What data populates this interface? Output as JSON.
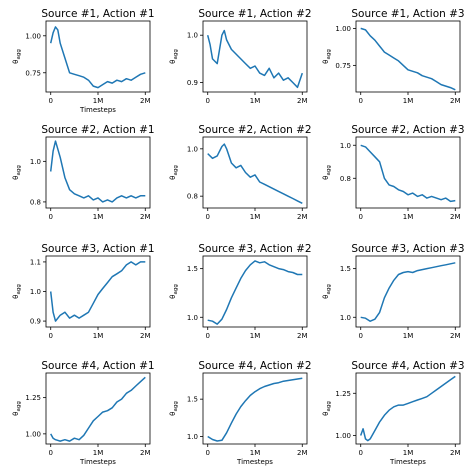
{
  "chart_data": [
    {
      "type": "line",
      "title": "Source #1, Action #1",
      "xlabel": "Timesteps",
      "ylabel": "θ_agg",
      "xlim": [
        -0.1,
        2.1
      ],
      "ylim": [
        0.62,
        1.1
      ],
      "x_ticks": [
        0,
        1,
        2
      ],
      "x_tick_labels": [
        "0",
        "1M",
        "2M"
      ],
      "y_ticks": [
        0.75,
        1.0
      ],
      "y_tick_labels": [
        "0.75",
        "1.00"
      ],
      "series": [
        {
          "x": [
            0,
            0.05,
            0.1,
            0.15,
            0.2,
            0.3,
            0.4,
            0.5,
            0.6,
            0.7,
            0.8,
            0.9,
            1.0,
            1.1,
            1.2,
            1.3,
            1.4,
            1.5,
            1.6,
            1.7,
            1.8,
            1.9,
            2.0
          ],
          "y": [
            0.95,
            1.02,
            1.06,
            1.04,
            0.95,
            0.85,
            0.75,
            0.74,
            0.73,
            0.72,
            0.7,
            0.66,
            0.65,
            0.67,
            0.69,
            0.68,
            0.7,
            0.69,
            0.71,
            0.7,
            0.72,
            0.74,
            0.75
          ]
        }
      ]
    },
    {
      "type": "line",
      "title": "Source #1, Action #2",
      "xlabel": "",
      "ylabel": "θ_agg",
      "xlim": [
        -0.1,
        2.1
      ],
      "ylim": [
        0.88,
        1.03
      ],
      "x_ticks": [
        0,
        1,
        2
      ],
      "x_tick_labels": [
        "0",
        "1M",
        "2M"
      ],
      "y_ticks": [
        0.9,
        1.0
      ],
      "y_tick_labels": [
        "0.9",
        "1.0"
      ],
      "series": [
        {
          "x": [
            0,
            0.05,
            0.1,
            0.2,
            0.3,
            0.35,
            0.4,
            0.5,
            0.6,
            0.7,
            0.8,
            0.9,
            1.0,
            1.1,
            1.2,
            1.3,
            1.4,
            1.5,
            1.6,
            1.7,
            1.8,
            1.9,
            2.0
          ],
          "y": [
            1.0,
            0.98,
            0.95,
            0.94,
            1.0,
            1.01,
            0.99,
            0.97,
            0.96,
            0.95,
            0.94,
            0.93,
            0.935,
            0.92,
            0.915,
            0.93,
            0.91,
            0.92,
            0.905,
            0.91,
            0.9,
            0.89,
            0.92
          ]
        }
      ]
    },
    {
      "type": "line",
      "title": "Source #1, Action #3",
      "xlabel": "",
      "ylabel": "θ_agg",
      "xlim": [
        -0.1,
        2.1
      ],
      "ylim": [
        0.57,
        1.05
      ],
      "x_ticks": [
        0,
        1,
        2
      ],
      "x_tick_labels": [
        "0",
        "1M",
        "2M"
      ],
      "y_ticks": [
        0.75,
        1.0
      ],
      "y_tick_labels": [
        "0.75",
        "1.00"
      ],
      "series": [
        {
          "x": [
            0,
            0.1,
            0.2,
            0.3,
            0.4,
            0.5,
            0.6,
            0.7,
            0.8,
            0.9,
            1.0,
            1.1,
            1.2,
            1.3,
            1.4,
            1.5,
            1.6,
            1.7,
            1.8,
            1.9,
            2.0
          ],
          "y": [
            1.0,
            0.99,
            0.95,
            0.92,
            0.88,
            0.84,
            0.82,
            0.8,
            0.78,
            0.75,
            0.72,
            0.71,
            0.7,
            0.68,
            0.67,
            0.66,
            0.64,
            0.62,
            0.61,
            0.6,
            0.585
          ]
        }
      ]
    },
    {
      "type": "line",
      "title": "Source #2, Action #1",
      "xlabel": "",
      "ylabel": "θ_agg",
      "xlim": [
        -0.1,
        2.1
      ],
      "ylim": [
        0.77,
        1.12
      ],
      "x_ticks": [
        0,
        1,
        2
      ],
      "x_tick_labels": [
        "0",
        "1M",
        "2M"
      ],
      "y_ticks": [
        0.8,
        1.0
      ],
      "y_tick_labels": [
        "0.8",
        "1.0"
      ],
      "series": [
        {
          "x": [
            0,
            0.05,
            0.1,
            0.2,
            0.3,
            0.4,
            0.5,
            0.6,
            0.7,
            0.8,
            0.9,
            1.0,
            1.1,
            1.2,
            1.3,
            1.4,
            1.5,
            1.6,
            1.7,
            1.8,
            1.9,
            2.0
          ],
          "y": [
            0.95,
            1.05,
            1.1,
            1.02,
            0.92,
            0.86,
            0.84,
            0.83,
            0.82,
            0.83,
            0.81,
            0.82,
            0.8,
            0.81,
            0.8,
            0.82,
            0.83,
            0.82,
            0.83,
            0.82,
            0.83,
            0.83
          ]
        }
      ]
    },
    {
      "type": "line",
      "title": "Source #2, Action #2",
      "xlabel": "",
      "ylabel": "θ_agg",
      "xlim": [
        -0.1,
        2.1
      ],
      "ylim": [
        0.75,
        1.05
      ],
      "x_ticks": [
        0,
        1,
        2
      ],
      "x_tick_labels": [
        "0",
        "1M",
        "2M"
      ],
      "y_ticks": [
        0.8,
        1.0
      ],
      "y_tick_labels": [
        "0.8",
        "1.0"
      ],
      "series": [
        {
          "x": [
            0,
            0.1,
            0.2,
            0.3,
            0.35,
            0.4,
            0.5,
            0.6,
            0.7,
            0.8,
            0.9,
            1.0,
            1.1,
            1.2,
            1.3,
            1.4,
            1.5,
            1.6,
            1.7,
            1.8,
            1.9,
            2.0
          ],
          "y": [
            0.98,
            0.96,
            0.97,
            1.01,
            1.02,
            1.0,
            0.94,
            0.92,
            0.93,
            0.9,
            0.88,
            0.89,
            0.86,
            0.85,
            0.84,
            0.83,
            0.82,
            0.81,
            0.8,
            0.79,
            0.78,
            0.77
          ]
        }
      ]
    },
    {
      "type": "line",
      "title": "Source #2, Action #3",
      "xlabel": "",
      "ylabel": "θ_agg",
      "xlim": [
        -0.1,
        2.1
      ],
      "ylim": [
        0.62,
        1.05
      ],
      "x_ticks": [
        0,
        1,
        2
      ],
      "x_tick_labels": [
        "0",
        "1M",
        "2M"
      ],
      "y_ticks": [
        0.8,
        1.0
      ],
      "y_tick_labels": [
        "0.8",
        "1.0"
      ],
      "series": [
        {
          "x": [
            0,
            0.1,
            0.2,
            0.3,
            0.4,
            0.5,
            0.6,
            0.7,
            0.8,
            0.9,
            1.0,
            1.1,
            1.2,
            1.3,
            1.4,
            1.5,
            1.6,
            1.7,
            1.8,
            1.9,
            2.0
          ],
          "y": [
            1.0,
            0.99,
            0.96,
            0.93,
            0.9,
            0.8,
            0.76,
            0.75,
            0.73,
            0.72,
            0.7,
            0.71,
            0.69,
            0.7,
            0.68,
            0.69,
            0.68,
            0.67,
            0.68,
            0.66,
            0.665
          ]
        }
      ]
    },
    {
      "type": "line",
      "title": "Source #3, Action #1",
      "xlabel": "",
      "ylabel": "θ_agg",
      "xlim": [
        -0.1,
        2.1
      ],
      "ylim": [
        0.88,
        1.12
      ],
      "x_ticks": [
        0,
        1,
        2
      ],
      "x_tick_labels": [
        "0",
        "1M",
        "2M"
      ],
      "y_ticks": [
        0.9,
        1.0,
        1.1
      ],
      "y_tick_labels": [
        "0.9",
        "1.0",
        "1.1"
      ],
      "series": [
        {
          "x": [
            0,
            0.05,
            0.1,
            0.2,
            0.3,
            0.4,
            0.5,
            0.6,
            0.7,
            0.8,
            0.9,
            1.0,
            1.1,
            1.2,
            1.3,
            1.4,
            1.5,
            1.6,
            1.7,
            1.8,
            1.9,
            2.0
          ],
          "y": [
            1.0,
            0.93,
            0.9,
            0.92,
            0.93,
            0.91,
            0.92,
            0.91,
            0.92,
            0.93,
            0.96,
            0.99,
            1.01,
            1.03,
            1.05,
            1.06,
            1.07,
            1.09,
            1.1,
            1.09,
            1.1,
            1.1
          ]
        }
      ]
    },
    {
      "type": "line",
      "title": "Source #3, Action #2",
      "xlabel": "",
      "ylabel": "θ_agg",
      "xlim": [
        -0.1,
        2.1
      ],
      "ylim": [
        0.9,
        1.63
      ],
      "x_ticks": [
        0,
        1,
        2
      ],
      "x_tick_labels": [
        "0",
        "1M",
        "2M"
      ],
      "y_ticks": [
        1.0,
        1.5
      ],
      "y_tick_labels": [
        "1.0",
        "1.5"
      ],
      "series": [
        {
          "x": [
            0,
            0.1,
            0.2,
            0.3,
            0.4,
            0.5,
            0.6,
            0.7,
            0.8,
            0.9,
            1.0,
            1.1,
            1.2,
            1.3,
            1.4,
            1.5,
            1.6,
            1.7,
            1.8,
            1.9,
            2.0
          ],
          "y": [
            0.97,
            0.96,
            0.93,
            0.98,
            1.08,
            1.2,
            1.3,
            1.4,
            1.48,
            1.54,
            1.58,
            1.56,
            1.57,
            1.54,
            1.52,
            1.5,
            1.49,
            1.47,
            1.46,
            1.44,
            1.44
          ]
        }
      ]
    },
    {
      "type": "line",
      "title": "Source #3, Action #3",
      "xlabel": "",
      "ylabel": "θ_agg",
      "xlim": [
        -0.1,
        2.1
      ],
      "ylim": [
        0.9,
        1.63
      ],
      "x_ticks": [
        0,
        1,
        2
      ],
      "x_tick_labels": [
        "0",
        "1M",
        "2M"
      ],
      "y_ticks": [
        1.0,
        1.5
      ],
      "y_tick_labels": [
        "1.0",
        "1.5"
      ],
      "series": [
        {
          "x": [
            0,
            0.1,
            0.2,
            0.3,
            0.4,
            0.5,
            0.6,
            0.7,
            0.8,
            0.9,
            1.0,
            1.1,
            1.2,
            1.3,
            1.4,
            1.5,
            1.6,
            1.7,
            1.8,
            1.9,
            2.0
          ],
          "y": [
            1.0,
            0.99,
            0.96,
            0.98,
            1.05,
            1.2,
            1.3,
            1.38,
            1.44,
            1.46,
            1.47,
            1.46,
            1.48,
            1.49,
            1.5,
            1.51,
            1.52,
            1.53,
            1.54,
            1.55,
            1.56
          ]
        }
      ]
    },
    {
      "type": "line",
      "title": "Source #4, Action #1",
      "xlabel": "Timesteps",
      "ylabel": "θ_agg",
      "xlim": [
        -0.1,
        2.1
      ],
      "ylim": [
        0.93,
        1.42
      ],
      "x_ticks": [
        0,
        1,
        2
      ],
      "x_tick_labels": [
        "0",
        "1M",
        "2M"
      ],
      "y_ticks": [
        1.0,
        1.25
      ],
      "y_tick_labels": [
        "1.00",
        "1.25"
      ],
      "series": [
        {
          "x": [
            0,
            0.05,
            0.1,
            0.2,
            0.3,
            0.4,
            0.5,
            0.6,
            0.7,
            0.8,
            0.9,
            1.0,
            1.1,
            1.2,
            1.3,
            1.4,
            1.5,
            1.6,
            1.7,
            1.8,
            1.9,
            2.0
          ],
          "y": [
            1.0,
            0.97,
            0.96,
            0.95,
            0.96,
            0.95,
            0.97,
            0.96,
            0.99,
            1.04,
            1.09,
            1.12,
            1.15,
            1.16,
            1.18,
            1.22,
            1.24,
            1.28,
            1.3,
            1.33,
            1.36,
            1.39
          ]
        }
      ]
    },
    {
      "type": "line",
      "title": "Source #4, Action #2",
      "xlabel": "Timesteps",
      "ylabel": "θ_agg",
      "xlim": [
        -0.1,
        2.1
      ],
      "ylim": [
        0.9,
        1.85
      ],
      "x_ticks": [
        0,
        1,
        2
      ],
      "x_tick_labels": [
        "0",
        "1M",
        "2M"
      ],
      "y_ticks": [
        1.0,
        1.5
      ],
      "y_tick_labels": [
        "1.0",
        "1.5"
      ],
      "series": [
        {
          "x": [
            0,
            0.1,
            0.2,
            0.3,
            0.4,
            0.5,
            0.6,
            0.7,
            0.8,
            0.9,
            1.0,
            1.1,
            1.2,
            1.3,
            1.4,
            1.5,
            1.6,
            1.7,
            1.8,
            1.9,
            2.0
          ],
          "y": [
            1.0,
            0.96,
            0.94,
            0.95,
            1.05,
            1.18,
            1.3,
            1.4,
            1.48,
            1.55,
            1.6,
            1.64,
            1.67,
            1.69,
            1.71,
            1.72,
            1.74,
            1.75,
            1.76,
            1.77,
            1.78
          ]
        }
      ]
    },
    {
      "type": "line",
      "title": "Source #4, Action #3",
      "xlabel": "Timesteps",
      "ylabel": "θ_agg",
      "xlim": [
        -0.1,
        2.1
      ],
      "ylim": [
        0.95,
        1.37
      ],
      "x_ticks": [
        0,
        1,
        2
      ],
      "x_tick_labels": [
        "0",
        "1M",
        "2M"
      ],
      "y_ticks": [
        1.0,
        1.25
      ],
      "y_tick_labels": [
        "1.00",
        "1.25"
      ],
      "series": [
        {
          "x": [
            0,
            0.05,
            0.1,
            0.15,
            0.2,
            0.3,
            0.4,
            0.5,
            0.6,
            0.7,
            0.8,
            0.9,
            1.0,
            1.1,
            1.2,
            1.3,
            1.4,
            1.5,
            1.6,
            1.7,
            1.8,
            1.9,
            2.0
          ],
          "y": [
            1.0,
            1.04,
            0.98,
            0.97,
            0.98,
            1.03,
            1.08,
            1.12,
            1.15,
            1.17,
            1.18,
            1.18,
            1.19,
            1.2,
            1.21,
            1.22,
            1.23,
            1.25,
            1.27,
            1.29,
            1.31,
            1.33,
            1.35
          ]
        }
      ]
    }
  ],
  "colors": {
    "line": "#1f77b4",
    "axes": "#000000",
    "background": "#ffffff"
  }
}
